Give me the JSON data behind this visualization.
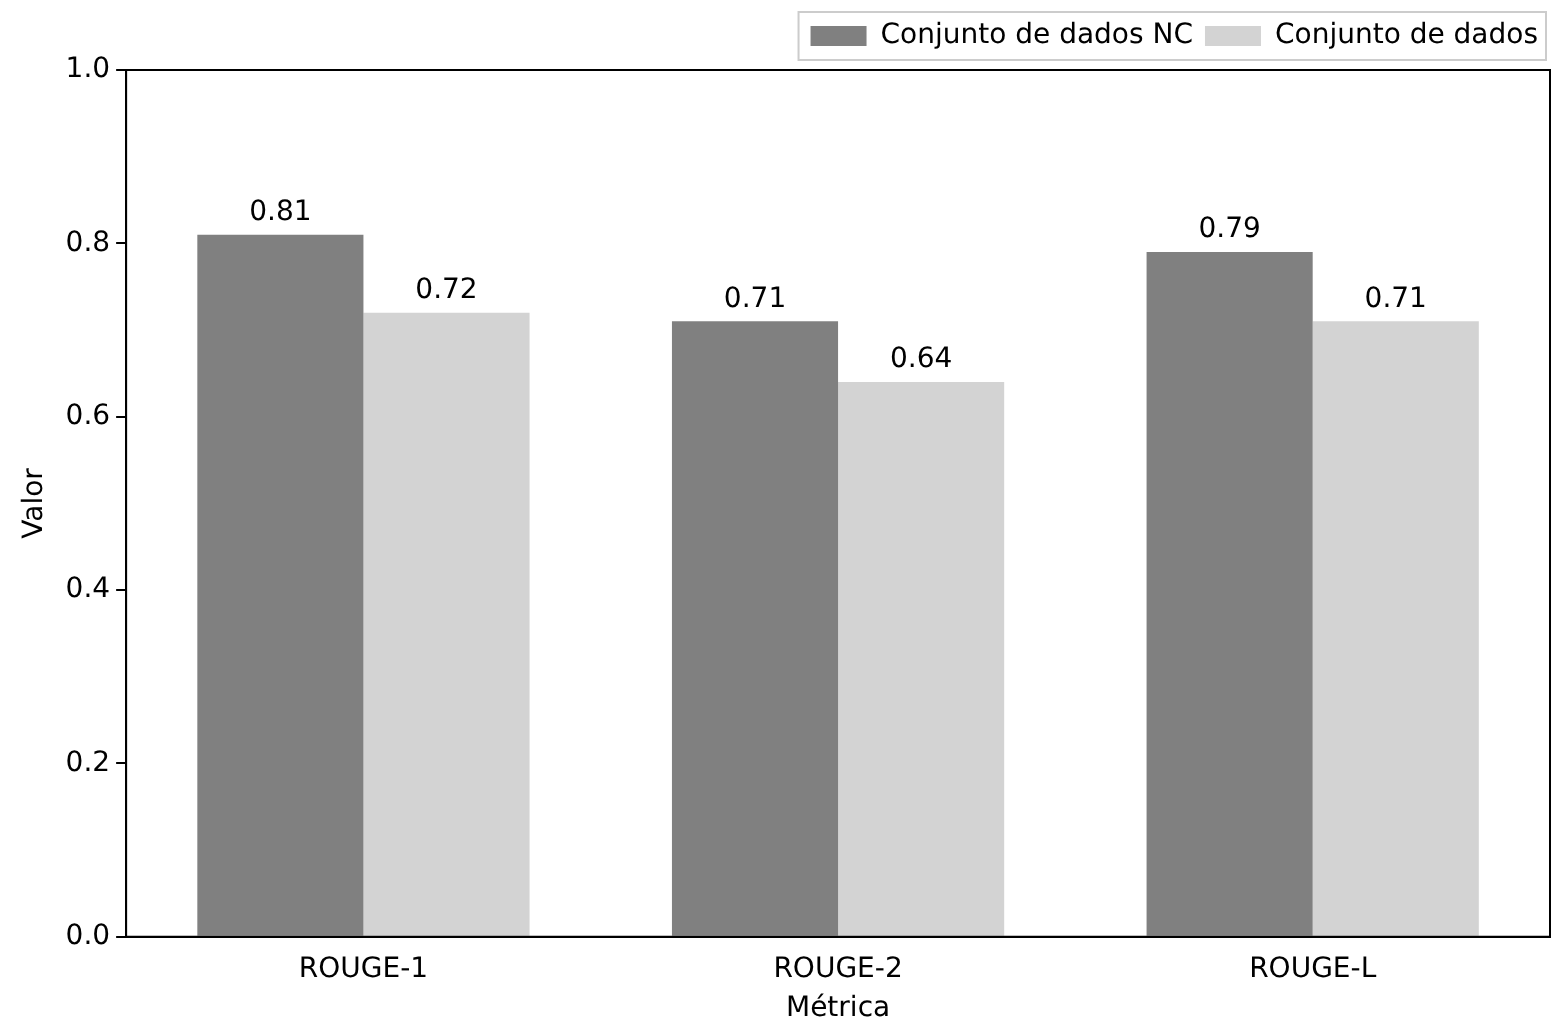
{
  "chart_data": {
    "type": "bar",
    "xlabel": "Métrica",
    "ylabel": "Valor",
    "categories": [
      "ROUGE-1",
      "ROUGE-2",
      "ROUGE-L"
    ],
    "series": [
      {
        "name": "Conjunto de dados NC",
        "color": "#808080",
        "values": [
          0.81,
          0.71,
          0.79
        ]
      },
      {
        "name": "Conjunto de dados",
        "color": "#d3d3d3",
        "values": [
          0.72,
          0.64,
          0.71
        ]
      }
    ],
    "ylim": [
      0,
      1
    ],
    "yticks": [
      {
        "value": 0,
        "label": "0.0"
      },
      {
        "value": 0.2,
        "label": "0.2"
      },
      {
        "value": 0.4,
        "label": "0.4"
      },
      {
        "value": 0.6,
        "label": "0.6"
      },
      {
        "value": 0.8,
        "label": "0.8"
      },
      {
        "value": 1,
        "label": "1.0"
      }
    ],
    "grid": false,
    "legend": "top right",
    "data_labels": true
  }
}
